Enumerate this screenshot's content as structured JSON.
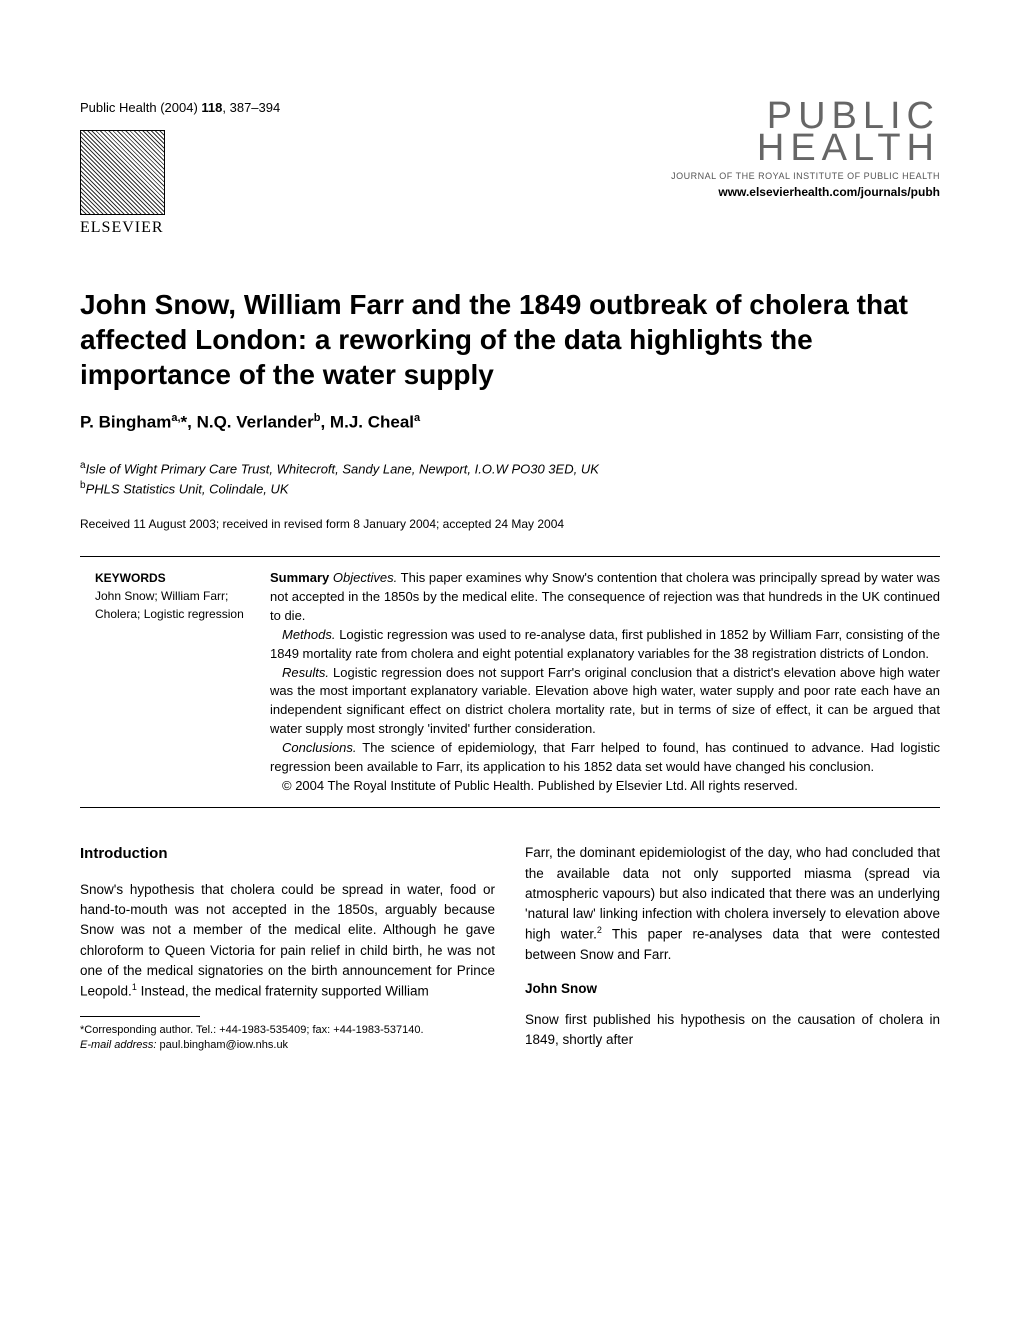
{
  "header": {
    "journal_ref_prefix": "Public Health (2004) ",
    "journal_ref_vol": "118",
    "journal_ref_pages": ", 387–394",
    "elsevier": "ELSEVIER",
    "logo_line1": "PUBLIC",
    "logo_line2": "HEALTH",
    "logo_subtitle": "JOURNAL OF THE ROYAL INSTITUTE OF PUBLIC HEALTH",
    "logo_url": "www.elsevierhealth.com/journals/pubh"
  },
  "title": "John Snow, William Farr and the 1849 outbreak of cholera that affected London: a reworking of the data highlights the importance of the water supply",
  "authors_html": "P. Bingham",
  "author1_sup": "a,",
  "author1_star": "*",
  "author_sep1": ", N.Q. Verlander",
  "author2_sup": "b",
  "author_sep2": ", M.J. Cheal",
  "author3_sup": "a",
  "affil_a_sup": "a",
  "affil_a": "Isle of Wight Primary Care Trust, Whitecroft, Sandy Lane, Newport, I.O.W PO30 3ED, UK",
  "affil_b_sup": "b",
  "affil_b": "PHLS Statistics Unit, Colindale, UK",
  "dates": "Received 11 August 2003; received in revised form 8 January 2004; accepted 24 May 2004",
  "keywords": {
    "head": "KEYWORDS",
    "text": "John Snow; William Farr; Cholera; Logistic regression"
  },
  "summary": {
    "label": "Summary",
    "obj_label": "Objectives.",
    "obj": " This paper examines why Snow's contention that cholera was principally spread by water was not accepted in the 1850s by the medical elite. The consequence of rejection was that hundreds in the UK continued to die.",
    "meth_label": "Methods.",
    "meth": " Logistic regression was used to re-analyse data, first published in 1852 by William Farr, consisting of the 1849 mortality rate from cholera and eight potential explanatory variables for the 38 registration districts of London.",
    "res_label": "Results.",
    "res": " Logistic regression does not support Farr's original conclusion that a district's elevation above high water was the most important explanatory variable. Elevation above high water, water supply and poor rate each have an independent significant effect on district cholera mortality rate, but in terms of size of effect, it can be argued that water supply most strongly 'invited' further consideration.",
    "con_label": "Conclusions.",
    "con": " The science of epidemiology, that Farr helped to found, has continued to advance. Had logistic regression been available to Farr, its application to his 1852 data set would have changed his conclusion.",
    "copyright": "© 2004 The Royal Institute of Public Health. Published by Elsevier Ltd. All rights reserved."
  },
  "body": {
    "intro_head": "Introduction",
    "intro_p1a": "Snow's hypothesis that cholera could be spread in water, food or hand-to-mouth was not accepted in the 1850s, arguably because Snow was not a member of the medical elite. Although he gave chloroform to Queen Victoria for pain relief in child birth, he was not one of the medical signatories on the birth announcement for Prince Leopold.",
    "intro_ref1": "1",
    "intro_p1b": " Instead, the medical fraternity supported William",
    "col2_p1a": "Farr, the dominant epidemiologist of the day, who had concluded that the available data not only supported miasma (spread via atmospheric vapours) but also indicated that there was an underlying 'natural law' linking infection with cholera inversely to elevation above high water.",
    "col2_ref2": "2",
    "col2_p1b": " This paper re-analyses data that were contested between Snow and Farr.",
    "snow_head": "John Snow",
    "snow_p1": "Snow first published his hypothesis on the causation of cholera in 1849, shortly after"
  },
  "footnote": {
    "corr": "*Corresponding author. Tel.: +44-1983-535409; fax: +44-1983-537140.",
    "email_label": "E-mail address:",
    "email": " paul.bingham@iow.nhs.uk"
  }
}
